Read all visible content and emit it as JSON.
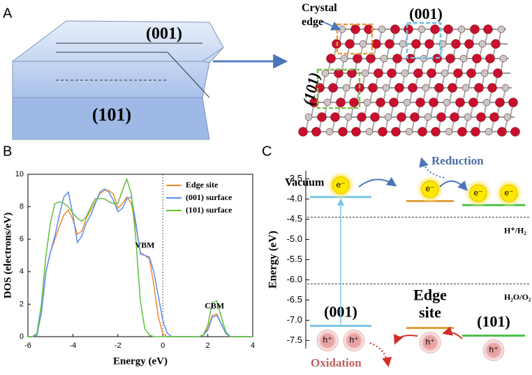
{
  "panel_labels": [
    "A",
    "B",
    "C"
  ],
  "panel_a": {
    "crystal_faces": [
      "(001)",
      "(101)"
    ],
    "structure": {
      "annotation": "Crystal edge",
      "faces": [
        "(001)",
        "(101)"
      ]
    }
  },
  "chart_data": [
    {
      "type": "line",
      "xlabel": "Energy (eV)",
      "ylabel": "DOS (electrons/eV)",
      "xlim": [
        -6,
        4
      ],
      "ylim": [
        0,
        10
      ],
      "xticks": [
        -6,
        -4,
        -2,
        0,
        2,
        4
      ],
      "yticks": [
        0,
        2,
        4,
        6,
        8,
        10
      ],
      "legend": "upper right",
      "annotations": [
        {
          "text": "VBM"
        },
        {
          "text": "CBM"
        }
      ],
      "x": [
        -6,
        -5.8,
        -5.6,
        -5.4,
        -5.2,
        -5,
        -4.8,
        -4.6,
        -4.4,
        -4.2,
        -4,
        -3.8,
        -3.6,
        -3.4,
        -3.2,
        -3,
        -2.8,
        -2.6,
        -2.4,
        -2.2,
        -2,
        -1.8,
        -1.6,
        -1.4,
        -1.2,
        -1,
        -0.8,
        -0.6,
        -0.4,
        -0.2,
        0,
        0.2,
        0.4,
        0.6,
        0.8,
        1,
        1.2,
        1.4,
        1.6,
        1.8,
        2,
        2.2,
        2.4,
        2.6,
        2.8,
        3,
        3.2,
        3.4,
        3.6,
        3.8,
        4
      ],
      "series": [
        {
          "name": "Edge site",
          "color": "#f08a2c",
          "values": [
            0,
            0,
            0.1,
            1.5,
            4,
            5.2,
            6,
            6.8,
            7.5,
            7.8,
            7.2,
            6.3,
            6.5,
            7.3,
            7.8,
            8.3,
            8.8,
            9.0,
            9.0,
            8.8,
            7.9,
            8.2,
            8.6,
            8.2,
            6.8,
            5.2,
            5.0,
            4.8,
            3.2,
            1.2,
            0.2,
            0,
            0,
            0,
            0,
            0,
            0,
            0,
            0,
            0.1,
            0.5,
            1.3,
            1.4,
            0.8,
            0.2,
            0,
            0,
            0,
            0,
            0,
            0
          ]
        },
        {
          "name": "(001) surface",
          "color": "#5b8def",
          "values": [
            0,
            0,
            0.1,
            1.5,
            4,
            5.2,
            6.2,
            7.5,
            8.6,
            8.9,
            7.5,
            5.8,
            6.2,
            7.0,
            7.5,
            8.2,
            8.9,
            9.1,
            8.9,
            8.4,
            7.7,
            7.9,
            8.5,
            8.6,
            7.0,
            5.1,
            5.0,
            4.9,
            4.0,
            2.5,
            1.0,
            0.2,
            0,
            0,
            0,
            0,
            0,
            0,
            0,
            0.1,
            0.4,
            1.2,
            1.3,
            0.8,
            0.2,
            0,
            0,
            0,
            0,
            0,
            0
          ]
        },
        {
          "name": "(101) surface",
          "color": "#5cc13c",
          "values": [
            0,
            0,
            0.2,
            2.0,
            5.0,
            7.0,
            8.2,
            8.3,
            8.2,
            8.0,
            7.6,
            7.3,
            7.1,
            7.4,
            8.0,
            8.5,
            8.5,
            8.5,
            8.3,
            8.2,
            8.2,
            9.0,
            9.7,
            8.8,
            6.0,
            2.2,
            0.5,
            0.1,
            0,
            0,
            0,
            0,
            0,
            0,
            0,
            0,
            0,
            0,
            0,
            0.1,
            0.7,
            2.1,
            2.2,
            1.2,
            0.3,
            0,
            0,
            0,
            0,
            0,
            0
          ]
        }
      ]
    },
    {
      "type": "energy-level",
      "ylabel": "Energy (eV)",
      "ylim": [
        -7.7,
        -3.3
      ],
      "yticks": [
        -3.5,
        {
          "value": -4,
          "label": "-4.0"
        },
        -4.5,
        {
          "value": -5,
          "label": "-5.0"
        },
        -5.5,
        {
          "value": -6,
          "label": "-6.0"
        },
        -6.5,
        {
          "value": -7,
          "label": "-7.0"
        },
        -7.5
      ],
      "vacuum_label": "Vacuum",
      "reduction_label": "Reduction",
      "oxidation_label": "Oxidation",
      "reference_lines": [
        {
          "label": "H⁺/H₂",
          "value": -4.45
        },
        {
          "label": "H₂O/O₂",
          "value": -6.1
        }
      ],
      "levels": [
        {
          "name": "(001)",
          "color": "#7cc6e6",
          "cb": -3.95,
          "vb": -7.14,
          "electrons": [
            "e⁻"
          ],
          "holes": [
            "h⁺",
            "h⁺"
          ]
        },
        {
          "name": "Edge site",
          "color": "#e0a03a",
          "cb": -4.05,
          "vb": -7.19,
          "electrons": [
            "e⁻"
          ],
          "holes": [
            "h⁺"
          ]
        },
        {
          "name": "(101)",
          "color": "#4cc04c",
          "cb": -4.15,
          "vb": -7.38,
          "electrons": [
            "e⁻",
            "e⁻"
          ],
          "holes": [
            "h⁺"
          ]
        }
      ]
    }
  ]
}
